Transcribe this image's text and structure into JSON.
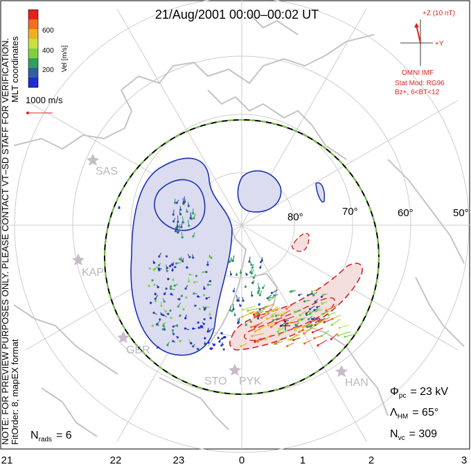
{
  "title": "21/Aug/2001  00:00–00:02  UT",
  "side_note": {
    "line1": "NOTE: FOR PREVIEW PURPOSES ONLY.  PLEASE CONTACT VT–SD STAFF FOR VERIFICATION.",
    "line2": "FitOrder: 8,  mapEX format",
    "line3": "MLT coordinates"
  },
  "colorbar": {
    "label": "Vel [m/s]",
    "ticks": [
      "600",
      "400",
      "200"
    ],
    "colors": [
      "#e8201c",
      "#f07020",
      "#f0b020",
      "#c8e040",
      "#80d040",
      "#30a060",
      "#3060a0",
      "#1e2ad8"
    ]
  },
  "scale_vector_label": "1000 m/s",
  "imf": {
    "z_label": "+Z (10 nT)",
    "y_label": "+Y",
    "source": "OMNI IMF",
    "stat_mod": "Stat Mod: RG96",
    "condition": "Bz+,  6<BT<12",
    "color": "#e02020"
  },
  "latitude_labels": [
    "80°",
    "70°",
    "60°",
    "50°"
  ],
  "stations": [
    "SAS",
    "KAP",
    "GBR",
    "STO",
    "PYK",
    "HAN"
  ],
  "stats": {
    "phi_pc_sym": "Φ",
    "phi_pc_sub": "pc",
    "phi_pc_val": "=  23 kV",
    "lambda_sym": "Λ",
    "lambda_sub": "HM",
    "lambda_val": "=  65°",
    "nvc_sym": "N",
    "nvc_sub": "vc",
    "nvc_val": "=  309",
    "nrads_sym": "N",
    "nrads_sub": "rads",
    "nrads_val": "=  6"
  },
  "mlt_labels": [
    "21",
    "22",
    "23",
    "0",
    "1",
    "2",
    "3"
  ],
  "colors": {
    "negative_cell": "#1a30b0",
    "positive_cell": "#d02020",
    "hm_boundary_dash": "#70c040"
  }
}
